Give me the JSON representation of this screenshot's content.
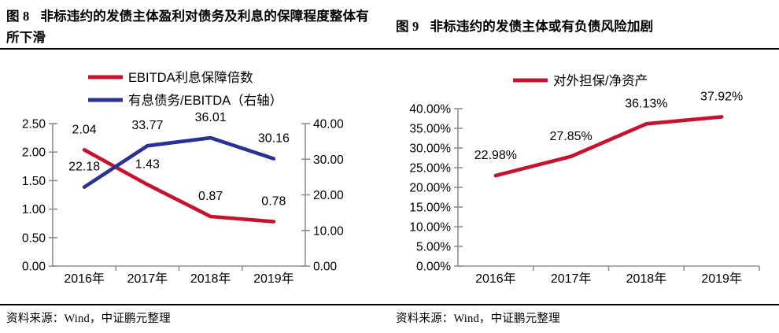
{
  "figures": [
    {
      "fig_label": "图 8",
      "title": "非标违约的发债主体盈利对债务及利息的保障程度整体有所下滑",
      "source": "资料来源：Wind，中证鹏元整理"
    },
    {
      "fig_label": "图 9",
      "title": "非标违约的发债主体或有负债风险加剧",
      "source": "资料来源：Wind，中证鹏元整理"
    }
  ],
  "colors": {
    "series_red": "#C8112C",
    "series_blue": "#2A3192",
    "axis_line": "#8F8F8F",
    "divider": "#000000",
    "text": "#000000"
  },
  "chart_data": [
    {
      "type": "line",
      "figure": "图 8",
      "categories": [
        "2016年",
        "2017年",
        "2018年",
        "2019年"
      ],
      "series": [
        {
          "name": "EBITDA利息保障倍数",
          "axis": "left",
          "color": "#C8112C",
          "values": [
            2.04,
            1.43,
            0.87,
            0.78
          ],
          "point_labels": [
            "2.04",
            "1.43",
            "0.87",
            "0.78"
          ]
        },
        {
          "name": "有息债务/EBITDA（右轴）",
          "axis": "right",
          "color": "#2A3192",
          "values": [
            22.18,
            33.77,
            36.01,
            30.16
          ],
          "point_labels": [
            "22.18",
            "33.77",
            "36.01",
            "30.16"
          ]
        }
      ],
      "left_axis": {
        "min": 0,
        "max": 2.5,
        "ticks": [
          "2.50",
          "2.00",
          "1.50",
          "1.00",
          "0.50",
          "0.00"
        ]
      },
      "right_axis": {
        "min": 0,
        "max": 40,
        "ticks": [
          "40.00",
          "30.00",
          "20.00",
          "10.00",
          "0.00"
        ]
      },
      "legend_position": "top",
      "grid": false
    },
    {
      "type": "line",
      "figure": "图 9",
      "categories": [
        "2016年",
        "2017年",
        "2018年",
        "2019年"
      ],
      "series": [
        {
          "name": "对外担保/净资产",
          "axis": "left",
          "color": "#C8112C",
          "values": [
            22.98,
            27.85,
            36.13,
            37.92
          ],
          "point_labels": [
            "22.98%",
            "27.85%",
            "36.13%",
            "37.92%"
          ]
        }
      ],
      "left_axis": {
        "min": 0,
        "max": 40,
        "ticks": [
          "40.00%",
          "35.00%",
          "30.00%",
          "25.00%",
          "20.00%",
          "15.00%",
          "10.00%",
          "5.00%",
          "0.00%"
        ]
      },
      "legend_position": "top",
      "grid": false
    }
  ]
}
